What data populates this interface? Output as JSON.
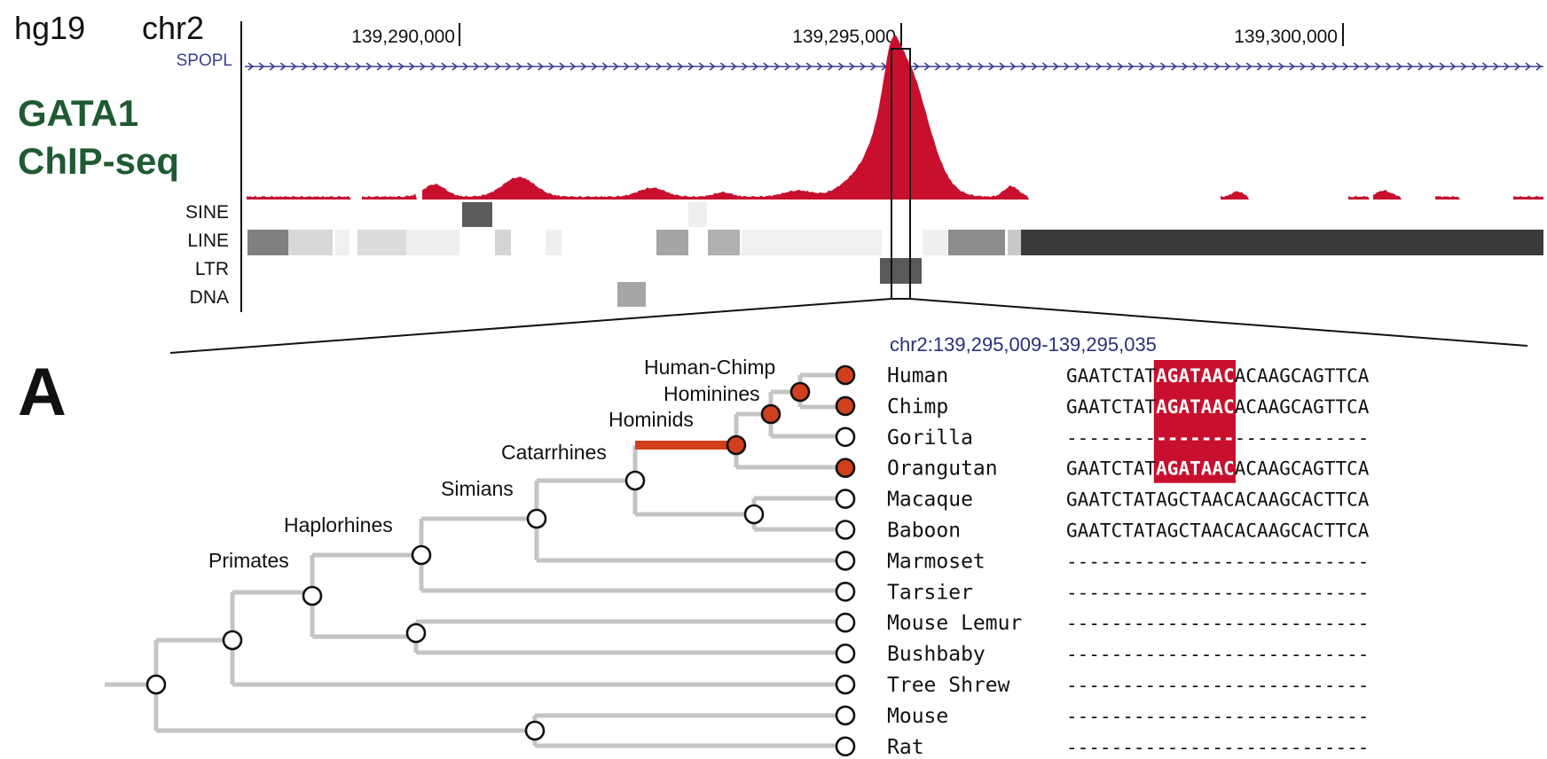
{
  "browser": {
    "assembly": "hg19",
    "chromosome": "chr2",
    "coordinates": [
      "139,290,000",
      "139,295,000",
      "139,300,000"
    ],
    "gene": "SPOPL",
    "track_title_line1": "GATA1",
    "track_title_line2": "ChIP-seq",
    "repeat_classes": [
      "SINE",
      "LINE",
      "LTR",
      "DNA"
    ]
  },
  "panel_label": "A",
  "region": "chr2:139,295,009-139,295,035",
  "tree": {
    "clades": [
      "Human-Chimp",
      "Hominines",
      "Hominids",
      "Catarrhines",
      "Simians",
      "Haplorhines",
      "Primates"
    ]
  },
  "alignment": {
    "motif": "AGATAAC",
    "rows": [
      {
        "species": "Human",
        "prefix": "GAATCTAT",
        "motif": "AGATAAC",
        "suffix": "ACAAGCAGTTCA",
        "present": true
      },
      {
        "species": "Chimp",
        "prefix": "GAATCTAT",
        "motif": "AGATAAC",
        "suffix": "ACAAGCAGTTCA",
        "present": true
      },
      {
        "species": "Gorilla",
        "prefix": "--------",
        "motif": "-------",
        "suffix": "------------",
        "present": false
      },
      {
        "species": "Orangutan",
        "prefix": "GAATCTAT",
        "motif": "AGATAAC",
        "suffix": "ACAAGCAGTTCA",
        "present": true
      },
      {
        "species": "Macaque",
        "prefix": "GAATCTAT",
        "motif": "AGCTAAC",
        "suffix": "ACAAGCACTTCA",
        "present": false
      },
      {
        "species": "Baboon",
        "prefix": "GAATCTAT",
        "motif": "AGCTAAC",
        "suffix": "ACAAGCACTTCA",
        "present": false
      },
      {
        "species": "Marmoset",
        "prefix": "--------",
        "motif": "-------",
        "suffix": "------------",
        "present": false
      },
      {
        "species": "Tarsier",
        "prefix": "--------",
        "motif": "-------",
        "suffix": "------------",
        "present": false
      },
      {
        "species": "Mouse Lemur",
        "prefix": "--------",
        "motif": "-------",
        "suffix": "------------",
        "present": false
      },
      {
        "species": "Bushbaby",
        "prefix": "--------",
        "motif": "-------",
        "suffix": "------------",
        "present": false
      },
      {
        "species": "Tree Shrew",
        "prefix": "--------",
        "motif": "-------",
        "suffix": "------------",
        "present": false
      },
      {
        "species": "Mouse",
        "prefix": "--------",
        "motif": "-------",
        "suffix": "------------",
        "present": false
      },
      {
        "species": "Rat",
        "prefix": "--------",
        "motif": "-------",
        "suffix": "------------",
        "present": false
      }
    ]
  },
  "colors": {
    "signal": "#c8102e",
    "motif_highlight": "#c8102e",
    "gain_node": "#d0401c",
    "gene_track": "#3a3f8f",
    "track_title": "#1e5a32",
    "region_text": "#27307a",
    "branch": "#c4c4c4"
  }
}
